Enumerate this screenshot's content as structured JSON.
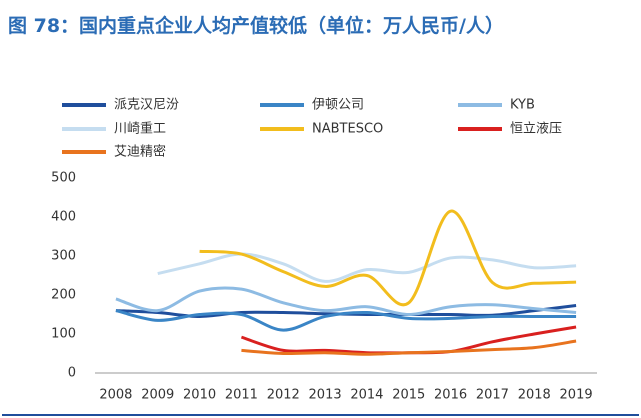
{
  "chart_data": {
    "type": "line",
    "title": "图 78：国内重点企业人均产值较低（单位：万人民币/人）",
    "categories": [
      "2008",
      "2009",
      "2010",
      "2011",
      "2012",
      "2013",
      "2014",
      "2015",
      "2016",
      "2017",
      "2018",
      "2019"
    ],
    "ylim": [
      0,
      500
    ],
    "yticks": [
      0,
      100,
      200,
      300,
      400,
      500
    ],
    "grid": false,
    "series": [
      {
        "name": "派克汉尼汾",
        "color": "#1f4e9c",
        "values": [
          160,
          155,
          145,
          155,
          155,
          152,
          150,
          150,
          150,
          148,
          160,
          173
        ]
      },
      {
        "name": "伊顿公司",
        "color": "#3a85c6",
        "values": [
          160,
          135,
          150,
          150,
          110,
          145,
          155,
          140,
          140,
          145,
          145,
          145
        ]
      },
      {
        "name": "KYB",
        "color": "#8dbbe3",
        "values": [
          190,
          160,
          210,
          215,
          180,
          160,
          170,
          150,
          170,
          175,
          165,
          155
        ]
      },
      {
        "name": "川崎重工",
        "color": "#c5ddf0",
        "values": [
          null,
          255,
          280,
          305,
          280,
          235,
          265,
          258,
          295,
          290,
          270,
          275
        ]
      },
      {
        "name": "NABTESCO",
        "color": "#f2bd1d",
        "values": [
          null,
          null,
          312,
          305,
          260,
          222,
          250,
          180,
          415,
          232,
          230,
          233
        ]
      },
      {
        "name": "恒立液压",
        "color": "#d9201f",
        "values": [
          null,
          null,
          null,
          92,
          58,
          58,
          52,
          52,
          55,
          80,
          100,
          118
        ]
      },
      {
        "name": "艾迪精密",
        "color": "#e8731e",
        "values": [
          null,
          null,
          null,
          58,
          50,
          52,
          48,
          52,
          55,
          60,
          65,
          82
        ]
      }
    ]
  }
}
